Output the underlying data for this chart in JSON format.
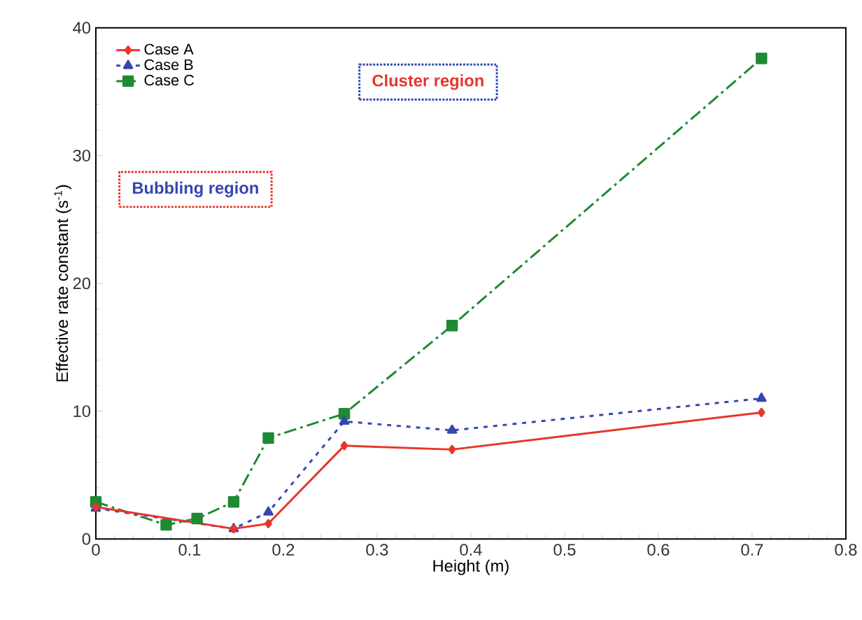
{
  "chart_data": {
    "type": "line",
    "xlabel": "Height (m)",
    "ylabel": "Effective rate constant (s$^{-1}$)",
    "xlim": [
      0,
      0.8
    ],
    "ylim": [
      0,
      40
    ],
    "xticks": [
      0,
      0.1,
      0.2,
      0.3,
      0.4,
      0.5,
      0.6,
      0.7,
      0.8
    ],
    "yticks": [
      0,
      10,
      20,
      30,
      40
    ],
    "grid": false,
    "legend": "top left",
    "annotations": [
      "Bubbling region",
      "Cluster region"
    ],
    "series": [
      {
        "name": "Case A",
        "color": "#e8352a",
        "marker": "diamond",
        "line_style": "solid",
        "x": [
          0,
          0.147,
          0.184,
          0.265,
          0.38,
          0.71
        ],
        "values": [
          2.5,
          0.8,
          1.2,
          7.3,
          7.0,
          9.9
        ]
      },
      {
        "name": "Case B",
        "color": "#3546b0",
        "marker": "triangle",
        "line_style": "dotted",
        "x": [
          0,
          0.147,
          0.184,
          0.265,
          0.38,
          0.71
        ],
        "values": [
          2.4,
          0.8,
          2.1,
          9.2,
          8.5,
          11.0
        ]
      },
      {
        "name": "Case C",
        "color": "#1e8a32",
        "marker": "square",
        "line_style": "dashed",
        "x": [
          0,
          0.075,
          0.108,
          0.147,
          0.184,
          0.265,
          0.38,
          0.71
        ],
        "values": [
          2.9,
          1.1,
          1.6,
          2.9,
          7.9,
          9.8,
          16.7,
          37.6
        ]
      }
    ]
  }
}
